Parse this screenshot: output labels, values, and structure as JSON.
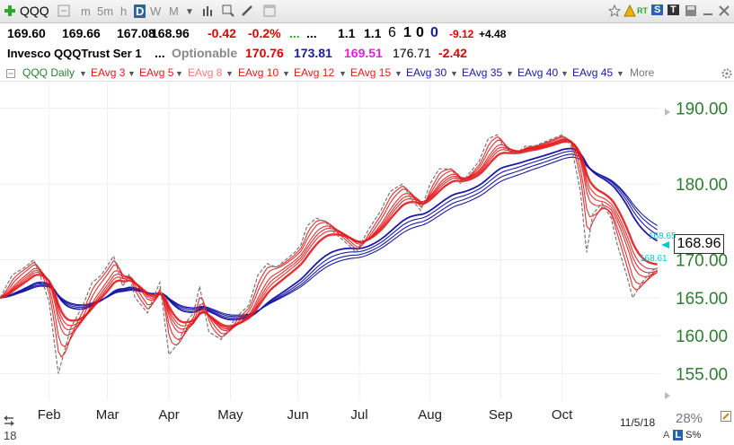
{
  "toolbar": {
    "symbol": "QQQ",
    "timeframes": [
      "m",
      "5m",
      "h",
      "D",
      "W",
      "M"
    ],
    "active_timeframe": "D",
    "right_badges": [
      "RT",
      "S",
      "T"
    ]
  },
  "quote": {
    "open": "169.60",
    "high": "169.66",
    "low": "167.08",
    "close": "168.96",
    "change": "-0.42",
    "change_pct": "-0.2%",
    "dots1": "...",
    "dots2": "...",
    "ratio1": "1.1",
    "ratio2": "1.1",
    "n1": "6",
    "n2": "1",
    "n3": "0",
    "n4": "0",
    "v1": "-9.12",
    "v2": "+4.48"
  },
  "name_row": {
    "name": "Invesco QQQTrust Ser 1",
    "dots": "...",
    "optionable": "Optionable",
    "v1": "170.76",
    "v2": "173.81",
    "v3": "169.51",
    "v4": "176.71",
    "v5": "-2.42"
  },
  "legend": {
    "items": [
      "QQQ Daily",
      "EAvg 3",
      "EAvg 5",
      "EAvg 8",
      "EAvg 10",
      "EAvg 12",
      "EAvg 15",
      "EAvg 30",
      "EAvg 35",
      "EAvg 40",
      "EAvg 45"
    ],
    "more": "More"
  },
  "price_label": "168.96",
  "cyan_labels": [
    "168.65",
    "168.61"
  ],
  "footer": {
    "date": "11/5/18",
    "zoom": "28%",
    "ls_l": "L",
    "ls_s": "S%",
    "left_num": "18"
  },
  "colors": {
    "up_green": "#2e7d32",
    "down_red": "#e00000",
    "short_ema": "#e31a1c",
    "long_ema": "#1a1aa6",
    "price_line": "#777777",
    "accent_blue": "#2a63a8"
  },
  "chart_data": {
    "type": "line",
    "title": "QQQ Daily",
    "y_ticks": [
      155,
      160,
      165,
      170,
      180,
      190
    ],
    "y_tick_labels": [
      "155.00",
      "160.00",
      "165.00",
      "170.00",
      "180.00",
      "190.00"
    ],
    "ylim": [
      151.5,
      193.5
    ],
    "xlim": [
      0,
      215
    ],
    "x_ticks": [
      {
        "label": "Feb",
        "x": 16
      },
      {
        "label": "Mar",
        "x": 35
      },
      {
        "label": "Apr",
        "x": 55
      },
      {
        "label": "May",
        "x": 75
      },
      {
        "label": "Jun",
        "x": 97
      },
      {
        "label": "Jul",
        "x": 117
      },
      {
        "label": "Aug",
        "x": 140
      },
      {
        "label": "Sep",
        "x": 163
      },
      {
        "label": "Oct",
        "x": 183
      }
    ],
    "price_keys": [
      [
        0,
        165
      ],
      [
        4,
        168
      ],
      [
        8,
        169
      ],
      [
        11,
        170
      ],
      [
        13,
        168
      ],
      [
        16,
        164.5
      ],
      [
        19,
        155
      ],
      [
        23,
        161
      ],
      [
        27,
        164
      ],
      [
        30,
        167
      ],
      [
        33,
        168
      ],
      [
        37,
        170.5
      ],
      [
        40,
        166.5
      ],
      [
        42,
        168
      ],
      [
        44,
        165
      ],
      [
        48,
        163
      ],
      [
        52,
        167
      ],
      [
        55,
        157.5
      ],
      [
        58,
        159
      ],
      [
        61,
        162
      ],
      [
        63,
        163
      ],
      [
        65,
        166.5
      ],
      [
        68,
        160.5
      ],
      [
        72,
        159.5
      ],
      [
        77,
        162.5
      ],
      [
        81,
        164
      ],
      [
        84,
        168
      ],
      [
        87,
        169.5
      ],
      [
        90,
        169
      ],
      [
        93,
        170
      ],
      [
        96,
        171
      ],
      [
        98,
        172
      ],
      [
        100,
        174.5
      ],
      [
        103,
        175.5
      ],
      [
        106,
        175
      ],
      [
        109,
        173.5
      ],
      [
        112,
        172.5
      ],
      [
        116,
        171
      ],
      [
        120,
        174
      ],
      [
        124,
        176.5
      ],
      [
        127,
        179
      ],
      [
        131,
        180
      ],
      [
        134,
        178
      ],
      [
        137,
        176.5
      ],
      [
        140,
        180
      ],
      [
        143,
        182
      ],
      [
        147,
        182
      ],
      [
        150,
        180
      ],
      [
        153,
        181.5
      ],
      [
        156,
        183
      ],
      [
        159,
        186
      ],
      [
        162,
        186.5
      ],
      [
        165,
        184
      ],
      [
        168,
        184
      ],
      [
        171,
        185
      ],
      [
        174,
        185
      ],
      [
        177,
        185.5
      ],
      [
        180,
        186
      ],
      [
        183,
        186.5
      ],
      [
        186,
        185
      ],
      [
        189,
        179
      ],
      [
        191,
        171
      ],
      [
        193,
        176
      ],
      [
        196,
        177.5
      ],
      [
        199,
        175.5
      ],
      [
        201,
        172
      ],
      [
        204,
        168
      ],
      [
        206,
        165
      ],
      [
        209,
        167
      ],
      [
        212,
        168.5
      ],
      [
        214,
        168.96
      ]
    ],
    "series": [
      {
        "name": "EAvg 3",
        "period": 3,
        "color": "#e31a1c"
      },
      {
        "name": "EAvg 5",
        "period": 5,
        "color": "#e31a1c"
      },
      {
        "name": "EAvg 8",
        "period": 8,
        "color": "#e31a1c"
      },
      {
        "name": "EAvg 10",
        "period": 10,
        "color": "#e31a1c"
      },
      {
        "name": "EAvg 12",
        "period": 12,
        "color": "#e31a1c"
      },
      {
        "name": "EAvg 15",
        "period": 15,
        "color": "#e31a1c"
      },
      {
        "name": "EAvg 30",
        "period": 30,
        "color": "#1a1aa6"
      },
      {
        "name": "EAvg 35",
        "period": 35,
        "color": "#1a1aa6"
      },
      {
        "name": "EAvg 40",
        "period": 40,
        "color": "#1a1aa6"
      },
      {
        "name": "EAvg 45",
        "period": 45,
        "color": "#1a1aa6"
      }
    ]
  }
}
